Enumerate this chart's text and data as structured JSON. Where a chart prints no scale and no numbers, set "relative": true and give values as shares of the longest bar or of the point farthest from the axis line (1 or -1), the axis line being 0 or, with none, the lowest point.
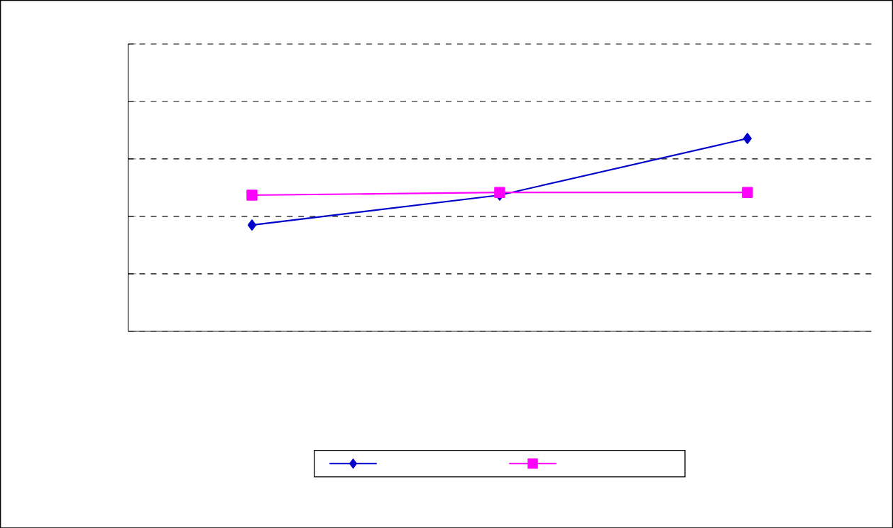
{
  "chart_data": {
    "type": "line",
    "relative": true,
    "categories": [
      null,
      null,
      null
    ],
    "grid": "y",
    "series": [
      {
        "color": "#0000cc",
        "marker": "diamond",
        "values": [
          0.551,
          0.706,
          1
        ]
      },
      {
        "color": "#ff00ff",
        "marker": "square",
        "values": [
          0.706,
          0.72,
          0.72
        ]
      }
    ]
  }
}
